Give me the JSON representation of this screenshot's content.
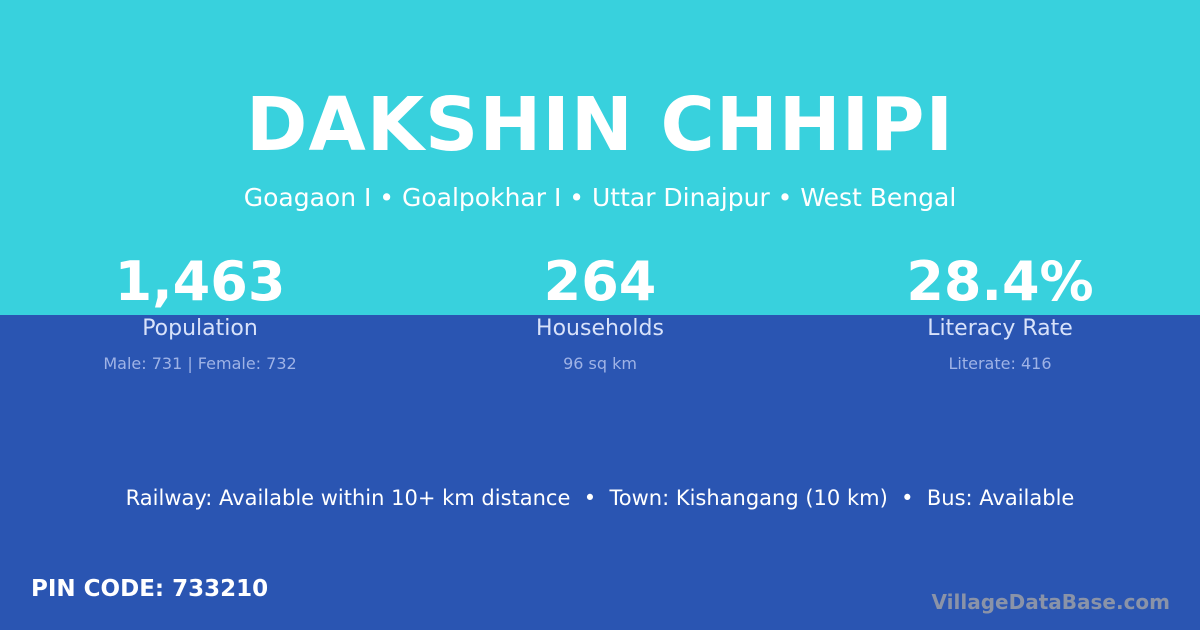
{
  "colors": {
    "top_bg": "#38d1dd",
    "bottom_bg": "#2a55b2"
  },
  "header": {
    "title": "DAKSHIN CHHIPI",
    "subtitle": "Goagaon I • Goalpokhar I • Uttar Dinajpur • West Bengal"
  },
  "stats": [
    {
      "value": "1,463",
      "label": "Population",
      "sub": "Male: 731 | Female: 732"
    },
    {
      "value": "264",
      "label": "Households",
      "sub": "96 sq km"
    },
    {
      "value": "28.4%",
      "label": "Literacy Rate",
      "sub": "Literate: 416"
    }
  ],
  "facts": "Railway: Available within 10+ km distance  •  Town: Kishangang (10 km)  •  Bus: Available",
  "pin": "PIN CODE: 733210",
  "brand": "VillageDataBase.com"
}
